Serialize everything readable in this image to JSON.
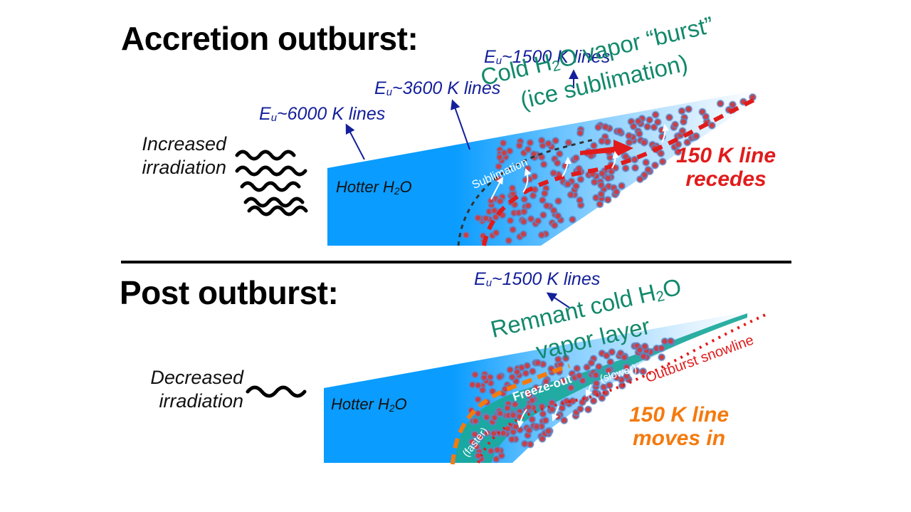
{
  "top_panel": {
    "heading": "Accretion outburst:",
    "irradiation_line1": "Increased",
    "irradiation_line2": "irradiation",
    "hot_label": "Hotter H",
    "hot_label_sub": "2",
    "hot_label_tail": "O",
    "energy_labels": [
      {
        "pre": "E",
        "sub": "u",
        "post": "~6000 K lines"
      },
      {
        "pre": "E",
        "sub": "u",
        "post": "~3600 K lines"
      },
      {
        "pre": "E",
        "sub": "u",
        "post": "~1500 K lines"
      }
    ],
    "burst_line1_pre": "Cold H",
    "burst_line1_sub": "2",
    "burst_line1_post": "O vapor “burst”",
    "burst_line2": "(ice sublimation)",
    "sublimation_label": "Sublimation",
    "line_label_1": "150 K line",
    "line_label_2": "recedes"
  },
  "bottom_panel": {
    "heading": "Post outburst:",
    "irradiation_line1": "Decreased",
    "irradiation_line2": "irradiation",
    "hot_label": "Hotter H",
    "hot_label_sub": "2",
    "hot_label_tail": "O",
    "energy_label": {
      "pre": "E",
      "sub": "u",
      "post": "~1500 K lines"
    },
    "remnant_line1_pre": "Remnant cold H",
    "remnant_line1_sub": "2",
    "remnant_line1_post": "O",
    "remnant_line2": "vapor layer",
    "freeze_label": "Freeze-out",
    "faster_label": "(faster)",
    "slower_label": "(slower)",
    "snowline_label": "Outburst snowline",
    "line_label_1": "150 K line",
    "line_label_2": "moves in"
  },
  "colors": {
    "hot_water": "#0a9cff",
    "cold_vapor": "#1aa89a",
    "energy_text": "#14209a",
    "green_text": "#12896b",
    "snowline_red": "#e11b1b",
    "line_orange": "#f47a0e",
    "grain_fill": "#d33d3d",
    "grain_ring": "#5b86c6"
  }
}
